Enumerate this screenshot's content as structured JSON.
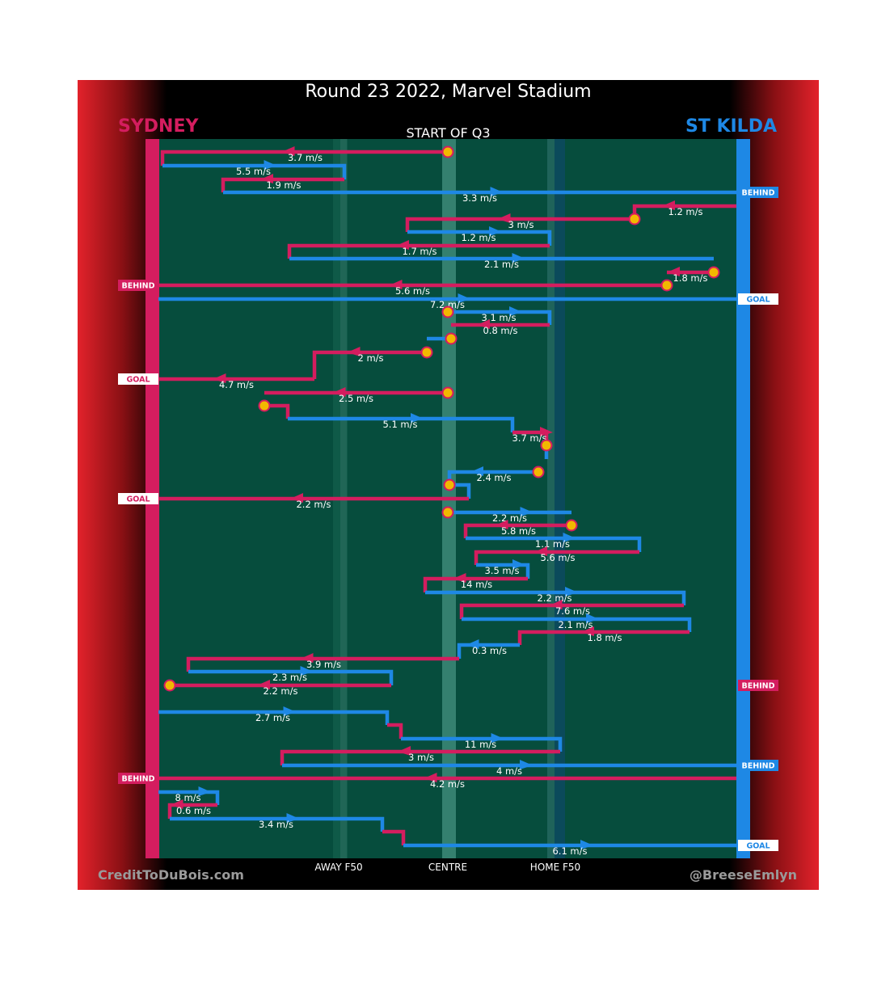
{
  "title": "Round 23 2022, Marvel Stadium",
  "period": "START OF Q3",
  "teams": {
    "left": "SYDNEY",
    "right": "ST KILDA"
  },
  "credits": {
    "left": "CreditToDuBois.com",
    "right": "@BreeseEmlyn"
  },
  "axis_labels": {
    "away": "AWAY F50",
    "centre": "CENTRE",
    "home": "HOME F50"
  },
  "colors": {
    "sydney": "#d41d5f",
    "stkilda": "#1e88e5",
    "field": "#064d3d",
    "marker_fill": "#f2b800",
    "marker_stroke": "#d41d5f"
  },
  "chart_data": {
    "type": "line",
    "x_axis": {
      "labels": [
        "AWAY F50",
        "CENTRE",
        "HOME F50"
      ]
    },
    "segments": [
      {
        "team": "sydney",
        "label": "3.7 m/s",
        "start_marker": true
      },
      {
        "team": "stkilda",
        "label": "5.5 m/s"
      },
      {
        "team": "sydney",
        "label": "1.9 m/s"
      },
      {
        "team": "stkilda",
        "label": "3.3 m/s",
        "end_event": "BEHIND"
      },
      {
        "team": "sydney",
        "label": "1.2 m/s"
      },
      {
        "team": "sydney",
        "label": "3 m/s",
        "start_marker": true
      },
      {
        "team": "stkilda",
        "label": "1.2 m/s"
      },
      {
        "team": "sydney",
        "label": "1.7 m/s"
      },
      {
        "team": "stkilda",
        "label": "2.1 m/s"
      },
      {
        "team": "sydney",
        "label": "1.8 m/s",
        "start_marker": true
      },
      {
        "team": "sydney",
        "label": "5.6 m/s",
        "start_marker": true,
        "end_event": "BEHIND"
      },
      {
        "team": "stkilda",
        "label": "7.2 m/s",
        "end_event": "GOAL"
      },
      {
        "team": "stkilda",
        "label": "3.1 m/s",
        "start_marker": true
      },
      {
        "team": "sydney",
        "label": "0.8 m/s"
      },
      {
        "team": "stkilda",
        "label": "",
        "start_marker": true
      },
      {
        "team": "sydney",
        "label": "2 m/s",
        "start_marker": true
      },
      {
        "team": "sydney",
        "label": "4.7 m/s",
        "end_event": "GOAL"
      },
      {
        "team": "sydney",
        "label": "2.5 m/s",
        "start_marker": true
      },
      {
        "team": "sydney",
        "label": "",
        "start_marker": true
      },
      {
        "team": "stkilda",
        "label": "5.1 m/s"
      },
      {
        "team": "sydney",
        "label": "3.7 m/s"
      },
      {
        "team": "stkilda",
        "label": "",
        "start_marker": true
      },
      {
        "team": "stkilda",
        "label": "2.4 m/s",
        "start_marker": true
      },
      {
        "team": "stkilda",
        "label": "",
        "start_marker": true
      },
      {
        "team": "sydney",
        "label": "2.2 m/s",
        "end_event": "GOAL"
      },
      {
        "team": "stkilda",
        "label": "2.2 m/s",
        "start_marker": true
      },
      {
        "team": "sydney",
        "label": "5.8 m/s",
        "start_marker": true
      },
      {
        "team": "stkilda",
        "label": "1.1 m/s"
      },
      {
        "team": "sydney",
        "label": "5.6 m/s"
      },
      {
        "team": "stkilda",
        "label": "3.5 m/s"
      },
      {
        "team": "sydney",
        "label": "14 m/s"
      },
      {
        "team": "stkilda",
        "label": "2.2 m/s"
      },
      {
        "team": "sydney",
        "label": "7.6 m/s"
      },
      {
        "team": "stkilda",
        "label": "2.1 m/s"
      },
      {
        "team": "sydney",
        "label": "1.8 m/s"
      },
      {
        "team": "stkilda",
        "label": "0.3 m/s"
      },
      {
        "team": "sydney",
        "label": "3.9 m/s"
      },
      {
        "team": "stkilda",
        "label": "2.3 m/s"
      },
      {
        "team": "sydney",
        "label": "2.2 m/s",
        "end_marker": true,
        "end_event": "BEHIND"
      },
      {
        "team": "stkilda",
        "label": "2.7 m/s"
      },
      {
        "team": "sydney",
        "label": ""
      },
      {
        "team": "stkilda",
        "label": "11 m/s"
      },
      {
        "team": "sydney",
        "label": "3 m/s"
      },
      {
        "team": "stkilda",
        "label": "4 m/s",
        "end_event": "BEHIND"
      },
      {
        "team": "sydney",
        "label": "4.2 m/s",
        "end_event": "BEHIND"
      },
      {
        "team": "stkilda",
        "label": "8 m/s"
      },
      {
        "team": "sydney",
        "label": "0.6 m/s"
      },
      {
        "team": "stkilda",
        "label": "3.4 m/s"
      },
      {
        "team": "sydney",
        "label": ""
      },
      {
        "team": "stkilda",
        "label": "6.1 m/s",
        "end_event": "GOAL"
      }
    ]
  }
}
